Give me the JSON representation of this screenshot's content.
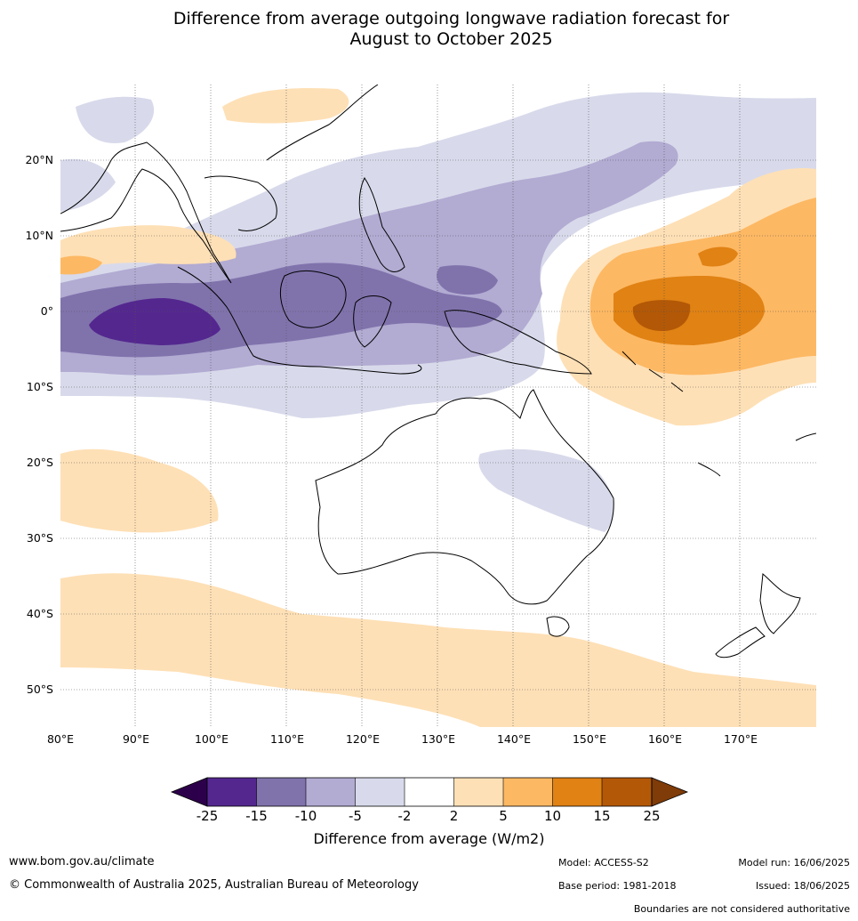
{
  "title": {
    "line1": "Difference from average outgoing longwave radiation forecast for",
    "line2": "August to October 2025"
  },
  "map": {
    "lon_labels": [
      "80°E",
      "90°E",
      "100°E",
      "110°E",
      "120°E",
      "130°E",
      "140°E",
      "150°E",
      "160°E",
      "170°E"
    ],
    "lat_labels": [
      "20°N",
      "10°N",
      "0°",
      "10°S",
      "20°S",
      "30°S",
      "40°S",
      "50°S"
    ],
    "lon_range": [
      80,
      180
    ],
    "lat_range": [
      -55,
      30
    ]
  },
  "colorbar": {
    "title": "Difference from average (W/m2)",
    "ticks": [
      "-25",
      "-15",
      "-10",
      "-5",
      "-2",
      "2",
      "5",
      "10",
      "15",
      "25"
    ],
    "colors": [
      "#54278f",
      "#8073ac",
      "#b2abd2",
      "#d8daeb",
      "#ffffff",
      "#fee0b6",
      "#fdb863",
      "#e08214",
      "#b35806"
    ],
    "under_color": "#2d004b",
    "over_color": "#7f3b08"
  },
  "footer": {
    "website": "www.bom.gov.au/climate",
    "copyright": "© Commonwealth of Australia 2025, Australian Bureau of Meteorology",
    "model": "Model: ACCESS-S2",
    "base_period": "Base period: 1981-2018",
    "model_run": "Model run: 16/06/2025",
    "issued": "Issued: 18/06/2025",
    "disclaimer": "Boundaries are not considered authoritative"
  }
}
